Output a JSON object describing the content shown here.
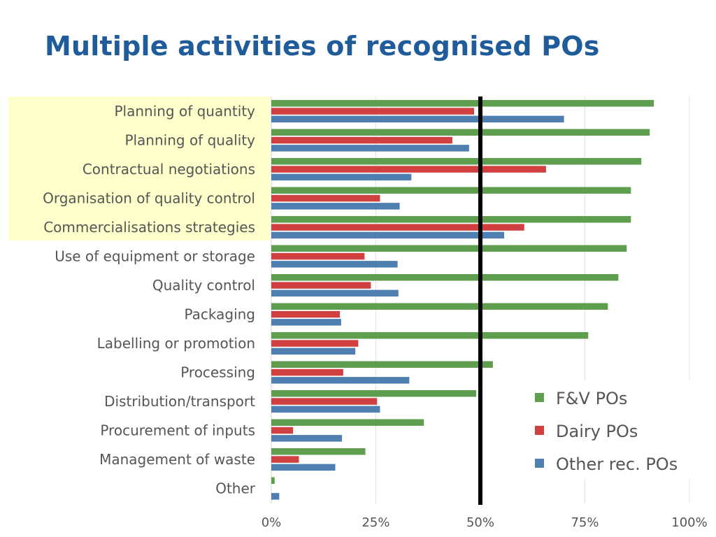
{
  "title": "Multiple activities of recognised POs",
  "colors": {
    "title": "#1f5c99",
    "fv": "#5f9e4f",
    "dairy": "#d04040",
    "other": "#4f7fb0",
    "highlight": "#ffffcc",
    "reference_line": "#000000"
  },
  "chart_data": {
    "type": "bar",
    "orientation": "horizontal",
    "title": "Multiple activities of recognised POs",
    "categories": [
      "Planning of quantity",
      "Planning of quality",
      "Contractual negotiations",
      "Organisation of quality control",
      "Commercialisations strategies",
      "Use of equipment or storage",
      "Quality control",
      "Packaging",
      "Labelling or promotion",
      "Processing",
      "Distribution/transport",
      "Procurement of inputs",
      "Management of waste",
      "Other"
    ],
    "series": [
      {
        "name": "F&V POs",
        "color": "#5f9e4f",
        "values": [
          91.5,
          90.5,
          88.5,
          86,
          86,
          85,
          83,
          80.5,
          75.8,
          53,
          49,
          36.5,
          22.5,
          0.8
        ]
      },
      {
        "name": "Dairy POs",
        "color": "#d04040",
        "values": [
          48.5,
          43.3,
          65.7,
          26,
          60.5,
          22.3,
          23.8,
          16.4,
          20.8,
          17.2,
          25.3,
          5.2,
          6.6,
          0
        ]
      },
      {
        "name": "Other rec. POs",
        "color": "#4f7fb0",
        "values": [
          70,
          47.3,
          33.5,
          30.7,
          55.7,
          30.2,
          30.4,
          16.7,
          20.1,
          33,
          26,
          16.9,
          15.3,
          1.9
        ]
      }
    ],
    "xlim": [
      0,
      100
    ],
    "xticks": [
      0,
      25,
      50,
      75,
      100
    ],
    "xtick_labels": [
      "0%",
      "25%",
      "50%",
      "75%",
      "100%"
    ],
    "reference_line": 50,
    "highlighted_categories": 5,
    "grid": true,
    "legend": "bottom-right",
    "xlabel": "",
    "ylabel": ""
  }
}
